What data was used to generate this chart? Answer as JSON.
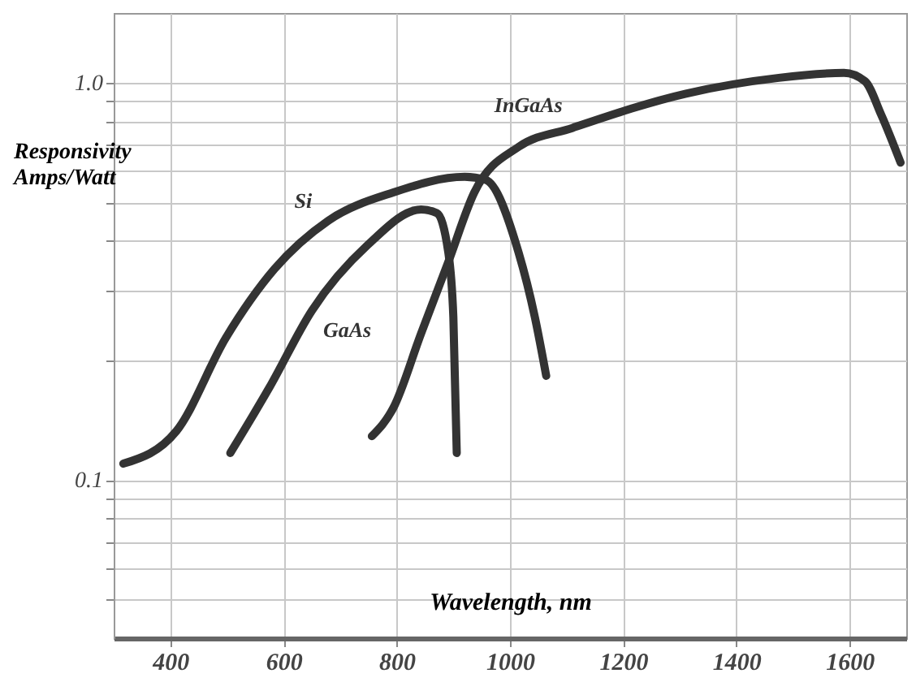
{
  "chart_data": {
    "type": "line",
    "xlabel": "Wavelength, nm",
    "ylabel": "Responsivity Amps/Watt",
    "log": "y",
    "grid": true,
    "legend": false,
    "line_style": "solid",
    "marker": "none",
    "xlim": [
      300,
      1700
    ],
    "xticks": [
      400,
      600,
      800,
      1000,
      1200,
      1400,
      1600
    ],
    "ylim": [
      0.04,
      1.5
    ],
    "yticks": [
      {
        "value": 0.05,
        "label": null
      },
      {
        "value": 0.06,
        "label": null
      },
      {
        "value": 0.07,
        "label": null
      },
      {
        "value": 0.08,
        "label": null
      },
      {
        "value": 0.09,
        "label": null
      },
      0.1,
      {
        "value": 0.2,
        "label": null
      },
      {
        "value": 0.3,
        "label": null
      },
      {
        "value": 0.4,
        "label": null
      },
      {
        "value": 0.5,
        "label": null
      },
      {
        "value": 0.6,
        "label": null
      },
      {
        "value": 0.7,
        "label": null
      },
      {
        "value": 0.8,
        "label": null
      },
      {
        "value": 0.9,
        "label": null
      },
      {
        "value": 1,
        "label": "1.0"
      }
    ],
    "series": [
      {
        "name": "Si",
        "color": "#333333",
        "x": [
          317,
          411,
          498,
          584,
          679,
          794,
          920,
          957,
          1015,
          1044,
          1064
        ],
        "values": [
          0.11,
          0.133,
          0.228,
          0.34,
          0.45,
          0.53,
          0.58,
          0.57,
          0.375,
          0.257,
          0.183
        ]
      },
      {
        "name": "GaAs",
        "color": "#333333",
        "x": [
          506,
          575,
          650,
          748,
          843,
          871,
          891,
          900,
          906
        ],
        "values": [
          0.117,
          0.171,
          0.267,
          0.39,
          0.48,
          0.47,
          0.375,
          0.257,
          0.117
        ]
      },
      {
        "name": "InGaAs",
        "color": "#333333",
        "x": [
          756,
          794,
          843,
          891,
          937,
          1015,
          1110,
          1311,
          1475,
          1590,
          1627,
          1656,
          1690
        ],
        "values": [
          0.129,
          0.152,
          0.234,
          0.354,
          0.53,
          0.69,
          0.77,
          0.94,
          1.03,
          1.06,
          1.01,
          0.83,
          0.63
        ]
      }
    ]
  }
}
